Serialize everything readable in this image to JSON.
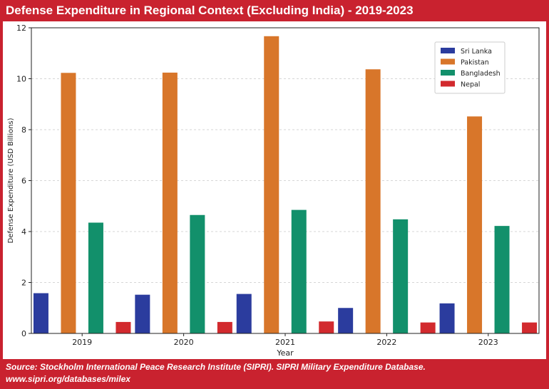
{
  "header": {
    "title": "Defense Expenditure in Regional Context (Excluding India) - 2019-2023"
  },
  "footer": {
    "source_line1": "Source: Stockholm International Peace Research Institute (SIPRI). SIPRI Military Expenditure Database.",
    "source_line2": "www.sipri.org/databases/milex"
  },
  "colors": {
    "frame": "#c9222f",
    "sri_lanka": "#2b3c9e",
    "pakistan": "#d8762a",
    "bangladesh": "#12906b",
    "nepal": "#d22a2e"
  },
  "chart_data": {
    "type": "bar",
    "title": "Defense Expenditure in Regional Context (Excluding India) - 2019-2023",
    "xlabel": "Year",
    "ylabel": "Defense Expenditure (USD Billions)",
    "categories": [
      "2019",
      "2020",
      "2021",
      "2022",
      "2023"
    ],
    "ylim": [
      0,
      12
    ],
    "yticks": [
      0,
      2,
      4,
      6,
      8,
      10,
      12
    ],
    "grid": true,
    "legend_position": "top-right",
    "series": [
      {
        "name": "Sri Lanka",
        "color": "#2b3c9e",
        "values": [
          1.58,
          1.52,
          1.55,
          1.0,
          1.18
        ]
      },
      {
        "name": "Pakistan",
        "color": "#d8762a",
        "values": [
          10.23,
          10.24,
          11.67,
          10.37,
          8.52
        ]
      },
      {
        "name": "Bangladesh",
        "color": "#12906b",
        "values": [
          4.35,
          4.65,
          4.85,
          4.48,
          4.22
        ]
      },
      {
        "name": "Nepal",
        "color": "#d22a2e",
        "values": [
          0.45,
          0.45,
          0.47,
          0.43,
          0.43
        ]
      }
    ]
  }
}
